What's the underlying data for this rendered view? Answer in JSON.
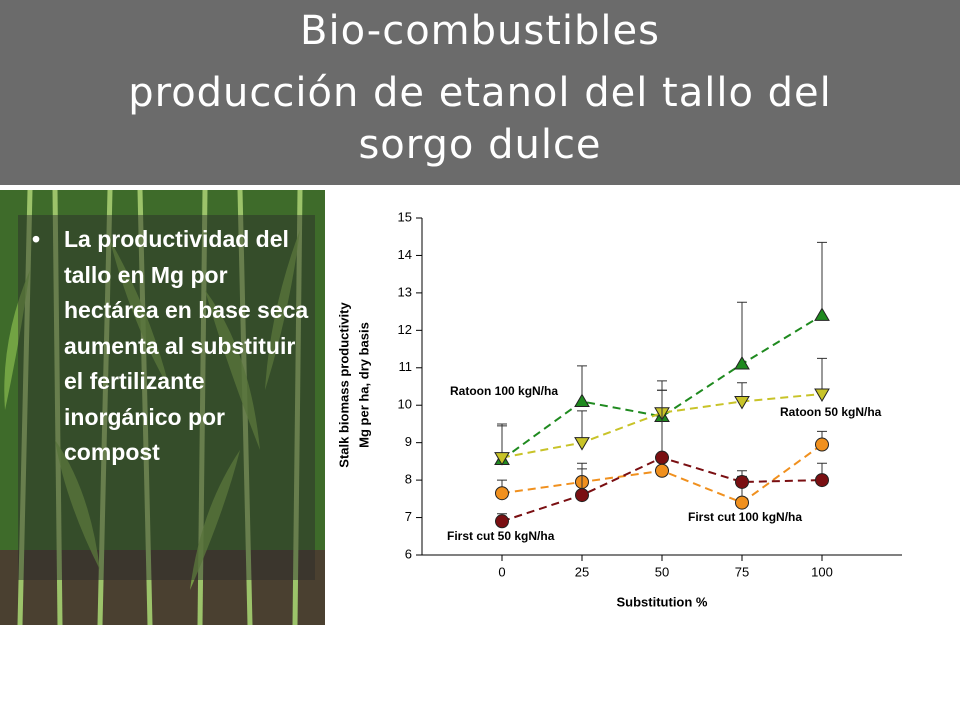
{
  "header": {
    "lines": [
      "Bio-combustibles",
      "producción de etanol del tallo del",
      "sorgo dulce"
    ]
  },
  "bullet": "La productividad del tallo en Mg por hectárea en base seca aumenta al substituir el fertilizante inorgánico por compost",
  "chart_data": {
    "type": "line",
    "ylabel": [
      "Stalk biomass productivity",
      "Mg per ha, dry basis"
    ],
    "xlabel": "Substitution %",
    "x": [
      0,
      25,
      50,
      75,
      100
    ],
    "xlim": [
      -25,
      125
    ],
    "xticks": [
      0,
      25,
      50,
      75,
      100
    ],
    "ylim": [
      6,
      15
    ],
    "yticks": [
      6,
      7,
      8,
      9,
      10,
      11,
      12,
      13,
      14,
      15
    ],
    "series": [
      {
        "name": "Ratoon 100 kgN/ha",
        "color": "#1f8a1f",
        "marker": "triangle-up",
        "values": [
          8.55,
          10.1,
          9.7,
          11.1,
          12.4
        ],
        "errors": [
          0.95,
          0.95,
          0.95,
          1.65,
          1.95
        ]
      },
      {
        "name": "Ratoon 50 kgN/ha",
        "color": "#c8c328",
        "marker": "triangle-down",
        "values": [
          8.6,
          9.0,
          9.8,
          10.1,
          10.3
        ],
        "errors": [
          0.85,
          0.85,
          0.6,
          0.5,
          0.95
        ]
      },
      {
        "name": "First cut 100 kgN/ha",
        "color": "#f0901e",
        "marker": "circle",
        "values": [
          7.65,
          7.95,
          8.25,
          7.4,
          8.95
        ],
        "errors": [
          0.35,
          0.5,
          0.35,
          0.7,
          0.35
        ]
      },
      {
        "name": "First cut 50 kgN/ha",
        "color": "#7a0f12",
        "marker": "circle",
        "values": [
          6.9,
          7.6,
          8.6,
          7.95,
          8.0
        ],
        "errors": [
          0.2,
          0.7,
          1.8,
          0.3,
          0.45
        ]
      }
    ]
  }
}
